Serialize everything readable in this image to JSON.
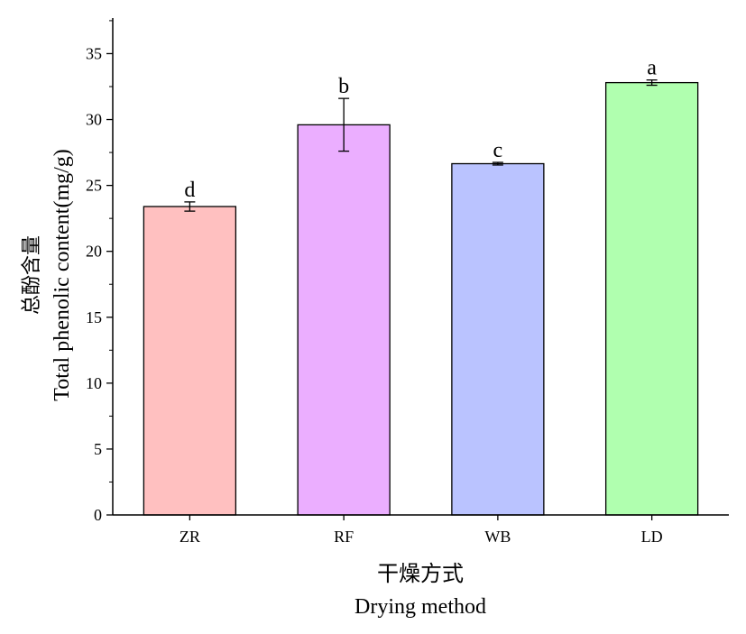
{
  "chart_data": {
    "type": "bar",
    "categories": [
      "ZR",
      "RF",
      "WB",
      "LD"
    ],
    "values": [
      23.4,
      29.6,
      26.65,
      32.8
    ],
    "errors": [
      0.35,
      2.0,
      0.1,
      0.2
    ],
    "significance_labels": [
      "d",
      "b",
      "c",
      "a"
    ],
    "colors": [
      "#FFC0C0",
      "#EBAEFF",
      "#BAC3FF",
      "#B0FFAF"
    ],
    "xlabel_cn": "干燥方式",
    "xlabel": "Drying method",
    "ylabel_cn": "总酚含量",
    "ylabel": "Total phenolic content(mg/g)",
    "ylim": [
      0,
      37.7
    ],
    "yticks": [
      0,
      5,
      10,
      15,
      20,
      25,
      30,
      35
    ],
    "grid": false
  }
}
